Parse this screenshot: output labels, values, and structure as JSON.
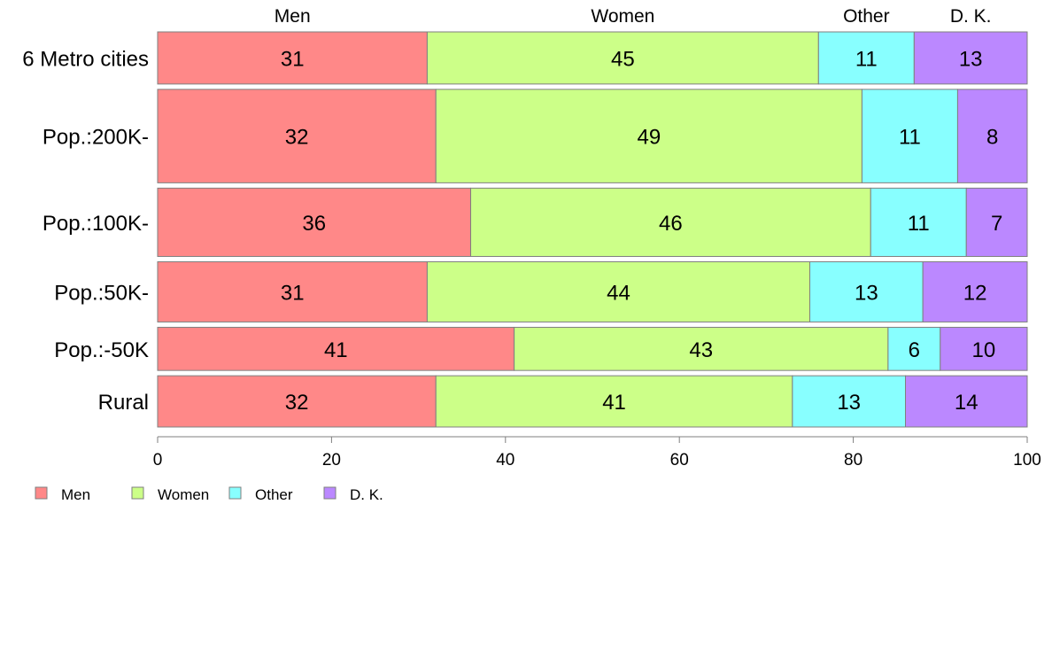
{
  "chart_data": {
    "type": "bar",
    "orientation": "horizontal",
    "stacked": true,
    "categories": [
      "6 Metro cities",
      "Pop.:200K-",
      "Pop.:100K-",
      "Pop.:50K-",
      "Pop.:-50K",
      "Rural"
    ],
    "series": [
      {
        "name": "Men",
        "color": "#FF8888",
        "values": [
          31,
          32,
          36,
          31,
          41,
          32
        ]
      },
      {
        "name": "Women",
        "color": "#CCFF88",
        "values": [
          45,
          49,
          46,
          44,
          43,
          41
        ]
      },
      {
        "name": "Other",
        "color": "#88FFFF",
        "values": [
          11,
          11,
          11,
          13,
          6,
          13
        ]
      },
      {
        "name": "D. K.",
        "color": "#BB88FF",
        "values": [
          13,
          8,
          7,
          12,
          10,
          14
        ]
      }
    ],
    "bar_widths": [
      0.58,
      1.04,
      0.76,
      0.67,
      0.48,
      0.57
    ],
    "xlim": [
      0,
      100
    ],
    "xticks": [
      0,
      20,
      40,
      60,
      80,
      100
    ],
    "legend_position": "bottom-left",
    "grid": false,
    "title": "",
    "xlabel": "",
    "ylabel": ""
  }
}
